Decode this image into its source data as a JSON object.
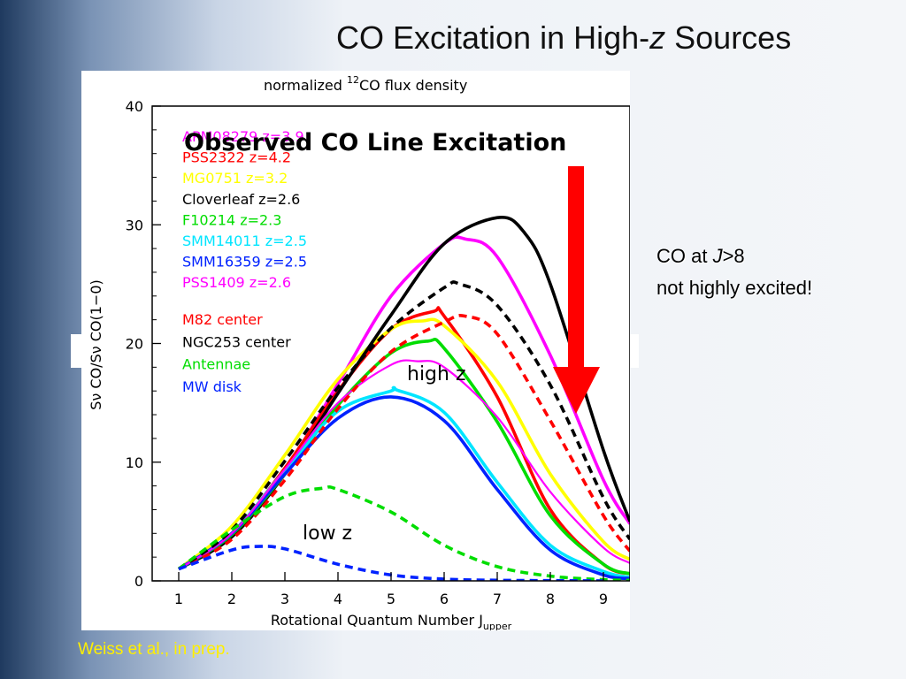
{
  "slide": {
    "title_prefix": "CO Excitation in High-",
    "title_italic": "z",
    "title_suffix": " Sources",
    "side_note_line1_prefix": "CO at ",
    "side_note_line1_italic": "J",
    "side_note_line1_suffix": ">8",
    "side_note_line2": "not highly excited!",
    "credit": "Weiss et al., in prep."
  },
  "chart_data": {
    "type": "line",
    "title": "normalized",
    "title_sup": "12",
    "title_rest": "CO flux density",
    "overlay_title": "Observed CO Line Excitation",
    "xlabel": "Rotational Quantum Number J",
    "xlabel_sub": "upper",
    "ylabel": "Sν CO/Sν CO(1−0)",
    "xlim": [
      0.5,
      9.5
    ],
    "ylim": [
      0,
      40
    ],
    "xticks": [
      "1",
      "2",
      "3",
      "4",
      "5",
      "6",
      "7",
      "8",
      "9"
    ],
    "yticks": [
      "0",
      "10",
      "20",
      "30",
      "40"
    ],
    "annotations": {
      "high": "high z",
      "low": "low z"
    },
    "arrow_color": "#ff0000",
    "series": [
      {
        "name": "APM08279 z=3.9",
        "color": "#ff00ff",
        "dash": false,
        "x": [
          1,
          2,
          3,
          4,
          5,
          6,
          6.4,
          7,
          8,
          9,
          9.5
        ],
        "y": [
          1,
          3.9,
          9.3,
          16.6,
          24,
          28.4,
          28.8,
          27.3,
          19,
          8.5,
          4.8
        ]
      },
      {
        "name": "PSS2322 z=4.2",
        "color": "#ff0000",
        "dash": false,
        "x": [
          1,
          2,
          3,
          4,
          5,
          5.8,
          6,
          7,
          8,
          9,
          9.5
        ],
        "y": [
          1,
          4,
          9.5,
          16,
          21.2,
          22.7,
          22.3,
          15.5,
          6,
          1.4,
          0.6
        ]
      },
      {
        "name": "MG0751 z=3.2",
        "color": "#ffff00",
        "dash": false,
        "x": [
          1,
          2,
          3,
          4,
          5,
          5.6,
          6,
          7,
          8,
          9,
          9.5
        ],
        "y": [
          1,
          4.6,
          10.6,
          17,
          21.2,
          21.9,
          21.5,
          16.8,
          9,
          3.3,
          1.8
        ]
      },
      {
        "name": "Cloverleaf z=2.6",
        "color": "#000000",
        "dash": false,
        "x": [
          1,
          2,
          3,
          4,
          5,
          6,
          7,
          7.5,
          8,
          9,
          9.5
        ],
        "y": [
          1,
          3.7,
          9,
          15.8,
          22.4,
          28.4,
          30.6,
          29.4,
          25,
          11,
          5
        ]
      },
      {
        "name": "F10214 z=2.3",
        "color": "#00dd00",
        "dash": false,
        "x": [
          1,
          2,
          3,
          4,
          5,
          5.7,
          6,
          7,
          8,
          9,
          9.5
        ],
        "y": [
          1,
          3.9,
          9,
          14.8,
          19.2,
          20.2,
          19.6,
          13.4,
          5.5,
          1.4,
          0.6
        ]
      },
      {
        "name": "SMM14011 z=2.5",
        "color": "#00e5ff",
        "dash": false,
        "x": [
          1,
          2,
          3,
          4,
          5,
          5.1,
          6,
          7,
          8,
          9,
          9.5
        ],
        "y": [
          1,
          4,
          9.3,
          14.3,
          16,
          16.1,
          14.2,
          8.3,
          3,
          0.8,
          0.3
        ]
      },
      {
        "name": "SMM16359 z=2.5",
        "color": "#0022ff",
        "dash": false,
        "x": [
          1,
          2,
          3,
          4,
          5,
          6,
          7,
          8,
          9,
          9.5
        ],
        "y": [
          1,
          4,
          9,
          13.7,
          15.5,
          13.5,
          7.7,
          2.6,
          0.5,
          0.2
        ]
      },
      {
        "name": "PSS1409 z=2.6",
        "color": "#ff00ff",
        "dash": false,
        "thin": true,
        "x": [
          1,
          2,
          3,
          4,
          5,
          5.5,
          6,
          7,
          8,
          9,
          9.5
        ],
        "y": [
          1,
          4,
          9.4,
          15,
          18.2,
          18.5,
          18,
          13.8,
          7.5,
          2.8,
          1.5
        ]
      },
      {
        "name": "M82 center",
        "color": "#ff0000",
        "dash": true,
        "x": [
          1,
          2,
          3,
          4,
          5,
          6,
          6.4,
          7,
          8,
          9,
          9.5
        ],
        "y": [
          1,
          3.5,
          8.5,
          14.5,
          19.3,
          21.8,
          22.3,
          20.8,
          13.5,
          5.5,
          2.5
        ]
      },
      {
        "name": "NGC253 center",
        "color": "#000000",
        "dash": true,
        "x": [
          1,
          2,
          3,
          4,
          5,
          6,
          6.3,
          7,
          8,
          9,
          9.5
        ],
        "y": [
          1,
          4.3,
          10.1,
          16.3,
          21.3,
          24.7,
          25,
          23.2,
          16.5,
          7,
          3.5
        ]
      },
      {
        "name": "Antennae",
        "color": "#00dd00",
        "dash": true,
        "x": [
          1,
          2,
          3,
          3.7,
          4,
          5,
          6,
          7,
          8,
          9,
          9.5
        ],
        "y": [
          1,
          4.3,
          7.1,
          7.8,
          7.7,
          5.8,
          3,
          1.2,
          0.4,
          0.1,
          0.05
        ]
      },
      {
        "name": "MW disk",
        "color": "#0022ff",
        "dash": true,
        "x": [
          1,
          2,
          2.5,
          3,
          4,
          5,
          6,
          7,
          8,
          9
        ],
        "y": [
          1,
          2.6,
          2.9,
          2.7,
          1.4,
          0.5,
          0.15,
          0.05,
          0.02,
          0
        ]
      }
    ],
    "legend": [
      {
        "label": "APM08279 z=3.9",
        "color": "#ff00ff"
      },
      {
        "label": "PSS2322 z=4.2",
        "color": "#ff0000"
      },
      {
        "label": "MG0751 z=3.2",
        "color": "#ffff00"
      },
      {
        "label": "Cloverleaf z=2.6",
        "color": "#000000"
      },
      {
        "label": "F10214 z=2.3",
        "color": "#00dd00"
      },
      {
        "label": "SMM14011 z=2.5",
        "color": "#00e5ff"
      },
      {
        "label": "SMM16359 z=2.5",
        "color": "#0022ff"
      },
      {
        "label": "PSS1409 z=2.6",
        "color": "#ff00ff"
      },
      {
        "label": "M82 center",
        "color": "#ff0000"
      },
      {
        "label": "NGC253 center",
        "color": "#000000"
      },
      {
        "label": "Antennae",
        "color": "#00dd00"
      },
      {
        "label": "MW disk",
        "color": "#0022ff"
      }
    ]
  }
}
